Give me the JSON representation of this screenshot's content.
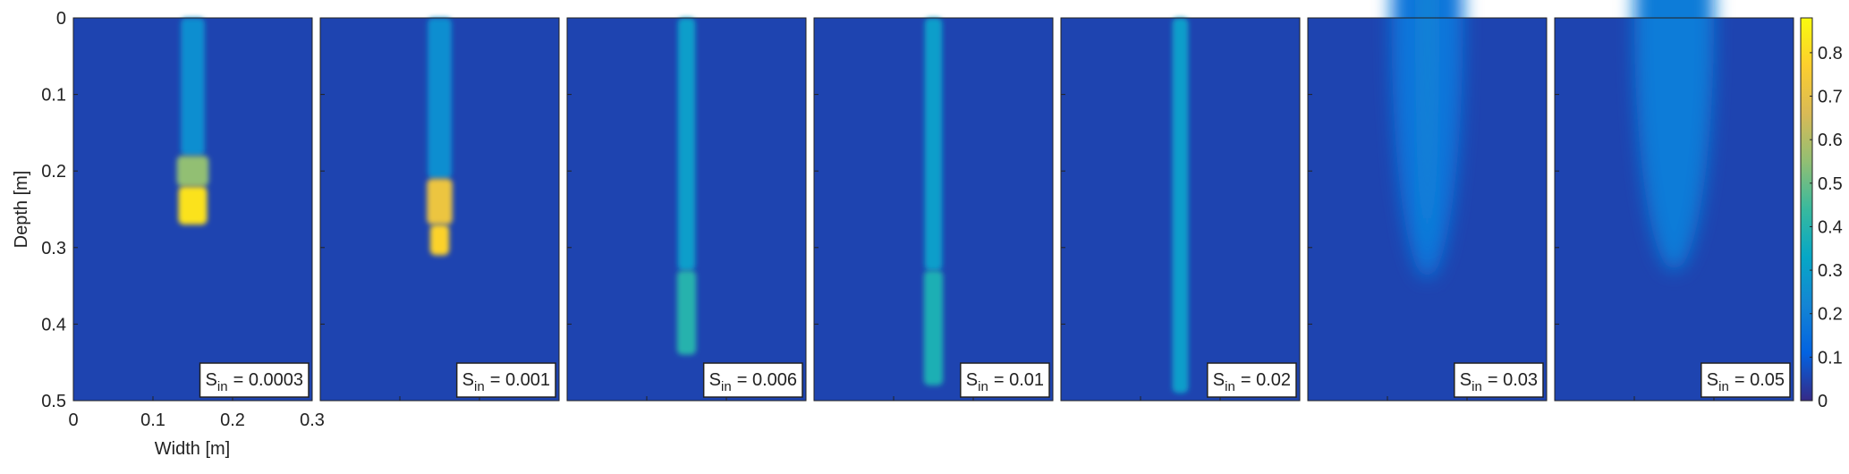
{
  "chart_data": {
    "type": "heatmap",
    "y_label": "Depth [m]",
    "x_label": "Width [m]",
    "ylim": [
      0,
      0.5
    ],
    "yticks": [
      0,
      0.1,
      0.2,
      0.3,
      0.4,
      0.5
    ],
    "xlim": [
      0,
      0.3
    ],
    "xticks": [
      0,
      0.1,
      0.2,
      0.3
    ],
    "clim": [
      0,
      0.88
    ],
    "cticks": [
      0,
      0.1,
      0.2,
      0.3,
      0.4,
      0.5,
      0.6,
      0.7,
      0.8
    ],
    "background": 0.05,
    "center": 0.15,
    "panels": [
      {
        "label": {
          "base": "S",
          "sub": "in",
          "rest": "= 0.0003"
        },
        "shape": "finger",
        "segments": [
          {
            "from": 0,
            "to": 0.18,
            "halfwidth": 0.015,
            "value": 0.25
          },
          {
            "from": 0.18,
            "to": 0.22,
            "halfwidth": 0.02,
            "value": 0.55
          },
          {
            "from": 0.22,
            "to": 0.27,
            "halfwidth": 0.018,
            "value": 0.82
          }
        ]
      },
      {
        "label": {
          "base": "S",
          "sub": "in",
          "rest": "= 0.001"
        },
        "shape": "finger",
        "segments": [
          {
            "from": 0,
            "to": 0.21,
            "halfwidth": 0.015,
            "value": 0.25
          },
          {
            "from": 0.21,
            "to": 0.27,
            "halfwidth": 0.016,
            "value": 0.72
          },
          {
            "from": 0.27,
            "to": 0.31,
            "halfwidth": 0.012,
            "value": 0.78
          }
        ]
      },
      {
        "label": {
          "base": "S",
          "sub": "in",
          "rest": "= 0.006"
        },
        "shape": "finger",
        "segments": [
          {
            "from": 0,
            "to": 0.33,
            "halfwidth": 0.011,
            "value": 0.3
          },
          {
            "from": 0.33,
            "to": 0.44,
            "halfwidth": 0.012,
            "value": 0.4
          }
        ]
      },
      {
        "label": {
          "base": "S",
          "sub": "in",
          "rest": "= 0.01"
        },
        "shape": "finger",
        "segments": [
          {
            "from": 0,
            "to": 0.33,
            "halfwidth": 0.011,
            "value": 0.3
          },
          {
            "from": 0.33,
            "to": 0.48,
            "halfwidth": 0.012,
            "value": 0.38
          }
        ]
      },
      {
        "label": {
          "base": "S",
          "sub": "in",
          "rest": "= 0.02"
        },
        "shape": "finger",
        "segments": [
          {
            "from": 0,
            "to": 0.49,
            "halfwidth": 0.01,
            "value": 0.3
          }
        ]
      },
      {
        "label": {
          "base": "S",
          "sub": "in",
          "rest": "= 0.03"
        },
        "shape": "ellipse",
        "segments": [
          {
            "from": 0,
            "to": 0.34,
            "halfwidth": 0.045,
            "value": 0.17
          },
          {
            "from": 0,
            "to": 0.3,
            "halfwidth": 0.008,
            "value": 0.23
          }
        ]
      },
      {
        "label": {
          "base": "S",
          "sub": "in",
          "rest": "= 0.05"
        },
        "shape": "ellipse",
        "segments": [
          {
            "from": 0,
            "to": 0.33,
            "halfwidth": 0.05,
            "value": 0.19
          }
        ]
      }
    ]
  }
}
